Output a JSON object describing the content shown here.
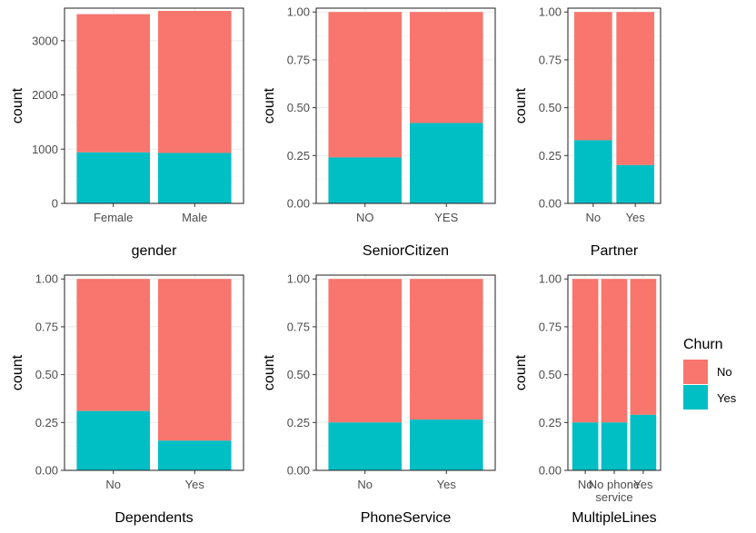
{
  "chart_data": [
    {
      "type": "bar",
      "stacked": true,
      "xlabel": "gender",
      "ylabel": "count",
      "categories": [
        "Female",
        "Male"
      ],
      "series": [
        {
          "name": "No",
          "values": [
            2550,
            2620
          ]
        },
        {
          "name": "Yes",
          "values": [
            940,
            930
          ]
        }
      ],
      "ylim": [
        0,
        3600
      ],
      "yticks": [
        0,
        1000,
        2000,
        3000
      ],
      "ytick_labels": [
        "0",
        "1000",
        "2000",
        "3000"
      ],
      "grid": true
    },
    {
      "type": "bar",
      "stacked": true,
      "xlabel": "SeniorCitizen",
      "ylabel": "count",
      "categories": [
        "NO",
        "YES"
      ],
      "series": [
        {
          "name": "No",
          "values": [
            0.76,
            0.58
          ]
        },
        {
          "name": "Yes",
          "values": [
            0.24,
            0.42
          ]
        }
      ],
      "ylim": [
        0,
        1.02
      ],
      "yticks": [
        0,
        0.25,
        0.5,
        0.75,
        1.0
      ],
      "ytick_labels": [
        "0.00",
        "0.25",
        "0.50",
        "0.75",
        "1.00"
      ],
      "grid": true
    },
    {
      "type": "bar",
      "stacked": true,
      "xlabel": "Partner",
      "ylabel": "count",
      "categories": [
        "No",
        "Yes"
      ],
      "series": [
        {
          "name": "No",
          "values": [
            0.67,
            0.8
          ]
        },
        {
          "name": "Yes",
          "values": [
            0.33,
            0.2
          ]
        }
      ],
      "ylim": [
        0,
        1.02
      ],
      "yticks": [
        0,
        0.25,
        0.5,
        0.75,
        1.0
      ],
      "ytick_labels": [
        "0.00",
        "0.25",
        "0.50",
        "0.75",
        "1.00"
      ],
      "grid": true
    },
    {
      "type": "bar",
      "stacked": true,
      "xlabel": "Dependents",
      "ylabel": "count",
      "categories": [
        "No",
        "Yes"
      ],
      "series": [
        {
          "name": "No",
          "values": [
            0.69,
            0.845
          ]
        },
        {
          "name": "Yes",
          "values": [
            0.31,
            0.155
          ]
        }
      ],
      "ylim": [
        0,
        1.02
      ],
      "yticks": [
        0,
        0.25,
        0.5,
        0.75,
        1.0
      ],
      "ytick_labels": [
        "0.00",
        "0.25",
        "0.50",
        "0.75",
        "1.00"
      ],
      "grid": true
    },
    {
      "type": "bar",
      "stacked": true,
      "xlabel": "PhoneService",
      "ylabel": "count",
      "categories": [
        "No",
        "Yes"
      ],
      "series": [
        {
          "name": "No",
          "values": [
            0.75,
            0.735
          ]
        },
        {
          "name": "Yes",
          "values": [
            0.25,
            0.265
          ]
        }
      ],
      "ylim": [
        0,
        1.02
      ],
      "yticks": [
        0,
        0.25,
        0.5,
        0.75,
        1.0
      ],
      "ytick_labels": [
        "0.00",
        "0.25",
        "0.50",
        "0.75",
        "1.00"
      ],
      "grid": true
    },
    {
      "type": "bar",
      "stacked": true,
      "xlabel": "MultipleLines",
      "ylabel": "count",
      "categories": [
        "No",
        "No phone\nservice",
        "Yes"
      ],
      "series": [
        {
          "name": "No",
          "values": [
            0.75,
            0.75,
            0.71
          ]
        },
        {
          "name": "Yes",
          "values": [
            0.25,
            0.25,
            0.29
          ]
        }
      ],
      "ylim": [
        0,
        1.02
      ],
      "yticks": [
        0,
        0.25,
        0.5,
        0.75,
        1.0
      ],
      "ytick_labels": [
        "0.00",
        "0.25",
        "0.50",
        "0.75",
        "1.00"
      ],
      "grid": true
    }
  ],
  "legend": {
    "title": "Churn",
    "placement": "right",
    "items": [
      {
        "label": "No",
        "color": "#F8766D"
      },
      {
        "label": "Yes",
        "color": "#00BFC4"
      }
    ]
  },
  "colors": {
    "No": "#F8766D",
    "Yes": "#00BFC4",
    "grid": "#ebebeb",
    "border": "#333333"
  }
}
